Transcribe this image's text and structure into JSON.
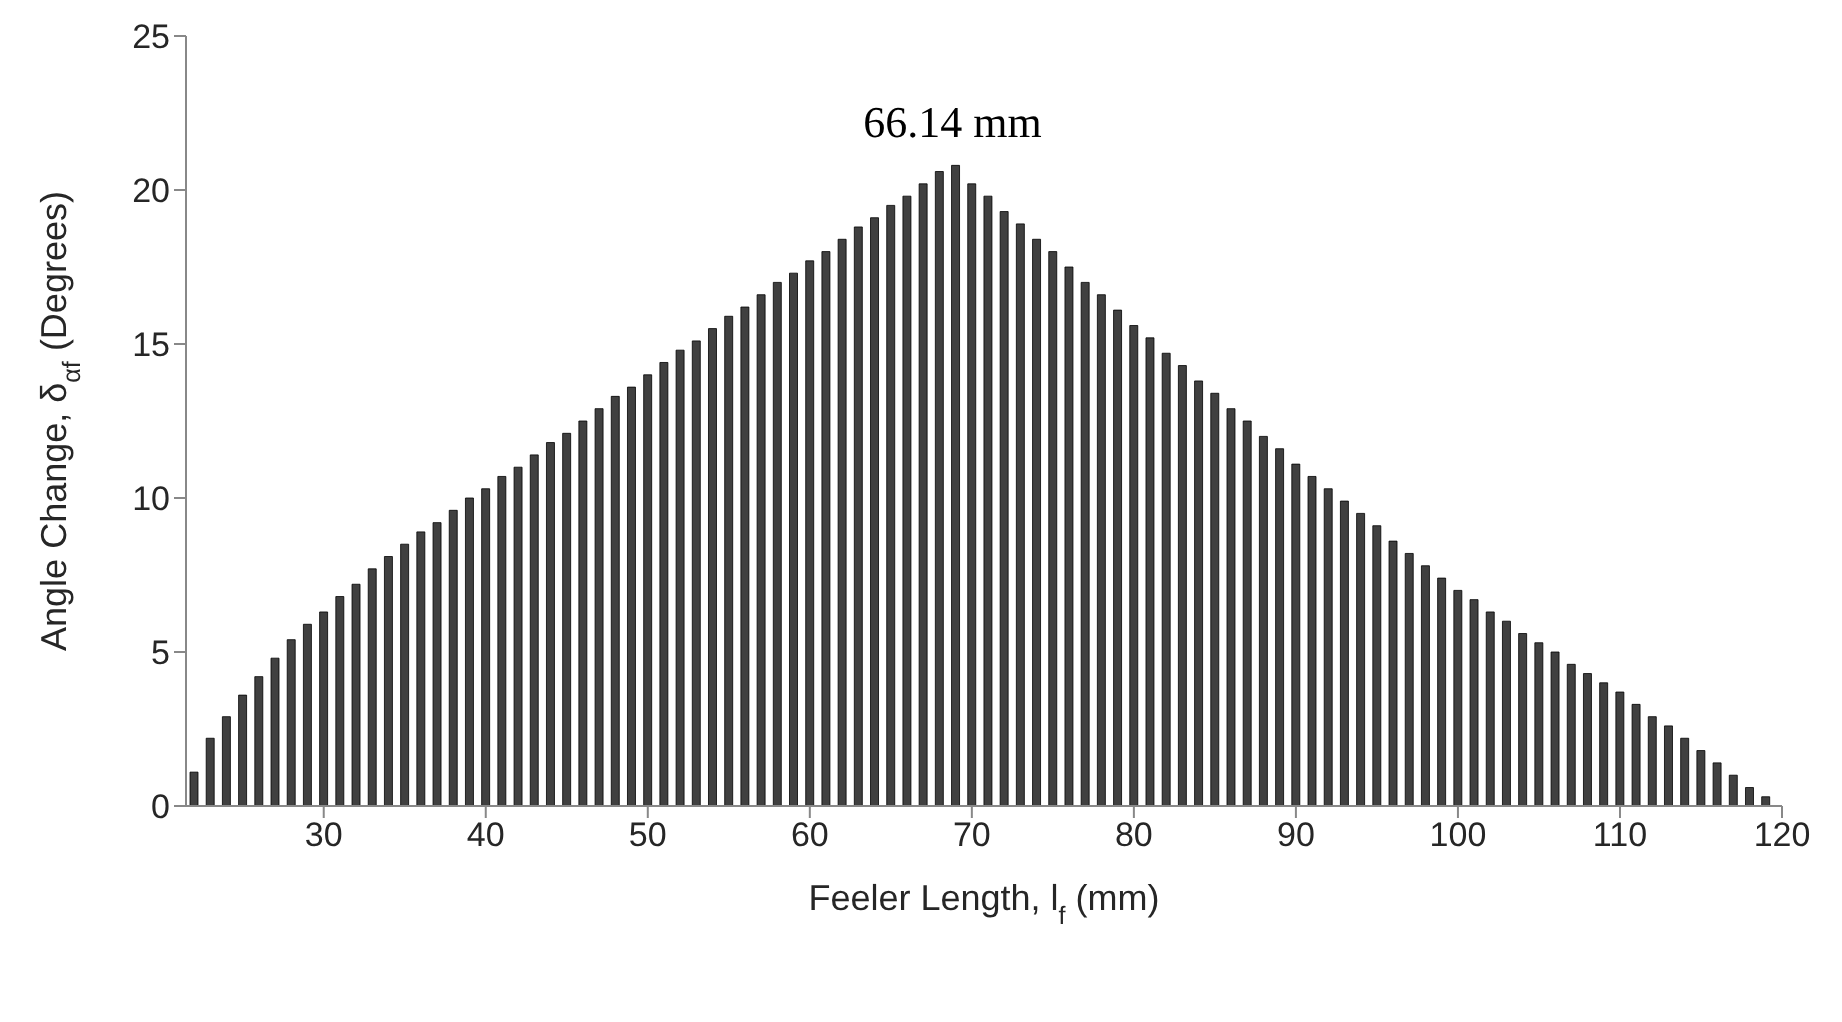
{
  "chart_data": {
    "type": "bar",
    "xlabel": "Feeler Length, l$_{f}$ (mm)",
    "ylabel": "Angle Change, δ$_{αf}$ (Degrees)",
    "x": [
      22,
      23,
      24,
      25,
      26,
      27,
      28,
      29,
      30,
      31,
      32,
      33,
      34,
      35,
      36,
      37,
      38,
      39,
      40,
      41,
      42,
      43,
      44,
      45,
      46,
      47,
      48,
      49,
      50,
      51,
      52,
      53,
      54,
      55,
      56,
      57,
      58,
      59,
      60,
      61,
      62,
      63,
      64,
      65,
      66,
      67,
      68,
      69,
      70,
      71,
      72,
      73,
      74,
      75,
      76,
      77,
      78,
      79,
      80,
      81,
      82,
      83,
      84,
      85,
      86,
      87,
      88,
      89,
      90,
      91,
      92,
      93,
      94,
      95,
      96,
      97,
      98,
      99,
      100,
      101,
      102,
      103,
      104,
      105,
      106,
      107,
      108,
      109,
      110,
      111,
      112,
      113,
      114,
      115,
      116,
      117,
      118,
      119
    ],
    "values": [
      1.1,
      2.2,
      2.9,
      3.6,
      4.2,
      4.8,
      5.4,
      5.9,
      6.3,
      6.8,
      7.2,
      7.7,
      8.1,
      8.5,
      8.9,
      9.2,
      9.6,
      10.0,
      10.3,
      10.7,
      11.0,
      11.4,
      11.8,
      12.1,
      12.5,
      12.9,
      13.3,
      13.6,
      14.0,
      14.4,
      14.8,
      15.1,
      15.5,
      15.9,
      16.2,
      16.6,
      17.0,
      17.3,
      17.7,
      18.0,
      18.4,
      18.8,
      19.1,
      19.5,
      19.8,
      20.2,
      20.6,
      20.8,
      20.2,
      19.8,
      19.3,
      18.9,
      18.4,
      18.0,
      17.5,
      17.0,
      16.6,
      16.1,
      15.6,
      15.2,
      14.7,
      14.3,
      13.8,
      13.4,
      12.9,
      12.5,
      12.0,
      11.6,
      11.1,
      10.7,
      10.3,
      9.9,
      9.5,
      9.1,
      8.6,
      8.2,
      7.8,
      7.4,
      7.0,
      6.7,
      6.3,
      6.0,
      5.6,
      5.3,
      5.0,
      4.6,
      4.3,
      4.0,
      3.7,
      3.3,
      2.9,
      2.6,
      2.2,
      1.8,
      1.4,
      1.0,
      0.6,
      0.3
    ],
    "color": "#404040",
    "xlim": [
      21.5,
      120
    ],
    "xticks": [
      30,
      40,
      50,
      60,
      70,
      80,
      90,
      100,
      110,
      120
    ],
    "ylim": [
      0,
      25
    ],
    "yticks": [
      0,
      5,
      10,
      15,
      20,
      25
    ],
    "annotations": [
      {
        "text": "66.14 mm",
        "x": 68.8,
        "y": 20.8
      }
    ],
    "grid": false,
    "legend": false
  }
}
